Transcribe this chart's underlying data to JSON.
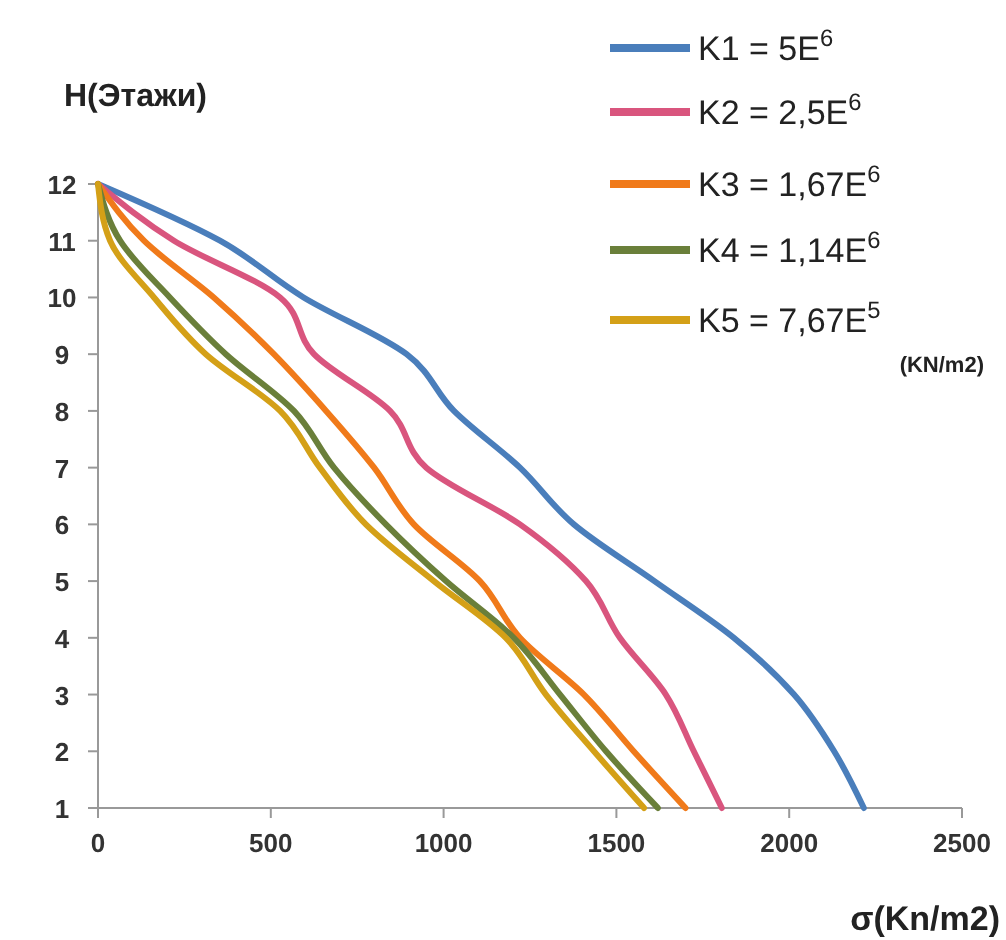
{
  "chart_data": {
    "type": "line",
    "xlabel": "σ(Kn/m2)",
    "ylabel": "H(Этажи)",
    "xlim": [
      0,
      2500
    ],
    "xticks": [
      0,
      500,
      1000,
      1500,
      2000,
      2500
    ],
    "ylim": [
      1,
      12
    ],
    "yticks": [
      1,
      2,
      3,
      4,
      5,
      6,
      7,
      8,
      9,
      10,
      11,
      12
    ],
    "legend": "top right",
    "grid": false,
    "marker": "none",
    "line_style": "solid",
    "annotations": [
      "(KN/m2)"
    ],
    "series": [
      {
        "name": "K1 = 5E$^{6}$",
        "color": "#4a7ebb",
        "x": [
          0,
          353,
          595,
          893,
          1030,
          1221,
          1377,
          1610,
          1840,
          2014,
          2130,
          2216
        ],
        "values": [
          12,
          11,
          10,
          9,
          8,
          7,
          6,
          5,
          4,
          3,
          2,
          1
        ]
      },
      {
        "name": "K2 = 2,5E$^{6}$",
        "color": "#d9557e",
        "x": [
          0,
          220,
          527,
          625,
          845,
          950,
          1221,
          1412,
          1510,
          1643,
          1724,
          1805
        ],
        "values": [
          12,
          11,
          10,
          9,
          8,
          7,
          6,
          5,
          4,
          3,
          2,
          1
        ]
      },
      {
        "name": "K3 = 1,67E$^{6}$",
        "color": "#f07a1a",
        "x": [
          0,
          133,
          335,
          509,
          660,
          799,
          914,
          1105,
          1221,
          1406,
          1550,
          1700
        ],
        "values": [
          12,
          11,
          10,
          9,
          8,
          7,
          6,
          5,
          4,
          3,
          2,
          1
        ]
      },
      {
        "name": "K4 = 1,14E$^{6}$",
        "color": "#6a7f3a",
        "x": [
          0,
          64,
          208,
          370,
          567,
          683,
          833,
          1007,
          1203,
          1337,
          1470,
          1620
        ],
        "values": [
          12,
          11,
          10,
          9,
          8,
          7,
          6,
          5,
          4,
          3,
          2,
          1
        ]
      },
      {
        "name": "K5 = 7,67E$^{5}$",
        "color": "#d4a017",
        "x": [
          0,
          35,
          162,
          312,
          527,
          642,
          775,
          972,
          1180,
          1296,
          1435,
          1580
        ],
        "values": [
          12,
          11,
          10,
          9,
          8,
          7,
          6,
          5,
          4,
          3,
          2,
          1
        ]
      }
    ]
  }
}
